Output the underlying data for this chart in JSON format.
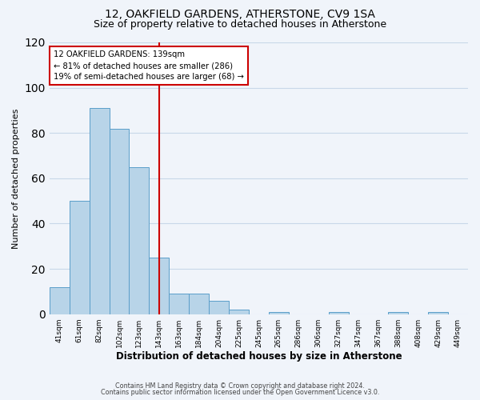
{
  "title": "12, OAKFIELD GARDENS, ATHERSTONE, CV9 1SA",
  "subtitle": "Size of property relative to detached houses in Atherstone",
  "xlabel": "Distribution of detached houses by size in Atherstone",
  "ylabel": "Number of detached properties",
  "bar_labels": [
    "41sqm",
    "61sqm",
    "82sqm",
    "102sqm",
    "123sqm",
    "143sqm",
    "163sqm",
    "184sqm",
    "204sqm",
    "225sqm",
    "245sqm",
    "265sqm",
    "286sqm",
    "306sqm",
    "327sqm",
    "347sqm",
    "367sqm",
    "388sqm",
    "408sqm",
    "429sqm",
    "449sqm"
  ],
  "bar_values": [
    12,
    50,
    91,
    82,
    65,
    25,
    9,
    9,
    6,
    2,
    0,
    1,
    0,
    0,
    1,
    0,
    0,
    1,
    0,
    1,
    0
  ],
  "bar_color": "#b8d4e8",
  "bar_edge_color": "#5a9ec9",
  "vline_x": 5,
  "vline_color": "#cc0000",
  "annotation_title": "12 OAKFIELD GARDENS: 139sqm",
  "annotation_line1": "← 81% of detached houses are smaller (286)",
  "annotation_line2": "19% of semi-detached houses are larger (68) →",
  "annotation_box_color": "#ffffff",
  "annotation_box_edge": "#cc0000",
  "ylim": [
    0,
    120
  ],
  "yticks": [
    0,
    20,
    40,
    60,
    80,
    100,
    120
  ],
  "footer1": "Contains HM Land Registry data © Crown copyright and database right 2024.",
  "footer2": "Contains public sector information licensed under the Open Government Licence v3.0.",
  "bg_color": "#f0f4fa",
  "grid_color": "#c8d8e8",
  "title_fontsize": 10,
  "subtitle_fontsize": 9
}
